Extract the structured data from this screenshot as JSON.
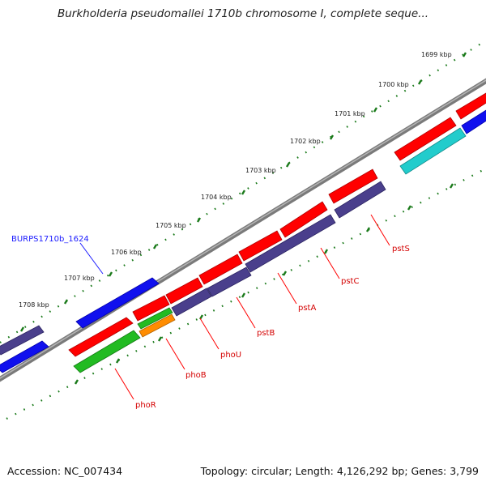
{
  "title": "Burkholderia pseudomallei 1710b chromosome I, complete seque...",
  "accession": "Accession: NC_007434",
  "topology": "Topology: circular; Length: 4,126,292 bp; Genes: 3,799",
  "kbp_labels": [
    "1699 kbp",
    "1700 kbp",
    "1701 kbp",
    "1702 kbp",
    "1703 kbp",
    "1704 kbp",
    "1705 kbp",
    "1706 kbp",
    "1707 kbp",
    "1708 kbp"
  ],
  "gene_labels": {
    "phoR": "phoR",
    "phoB": "phoB",
    "phoU": "phoU",
    "pstB": "pstB",
    "pstA": "pstA",
    "pstC": "pstC",
    "pstS": "pstS"
  },
  "locus_label": "BURPS1710b_1624",
  "colors": {
    "backbone": "#8a8a8a",
    "ticks": "#1a7a1a",
    "gene_red": "#ff0000",
    "gene_purple": "#4a3f8c",
    "gene_blue": "#1010ee",
    "gene_green": "#22bb22",
    "gene_orange": "#ff8c00",
    "gene_cyan": "#22cccc",
    "label_red": "#d40000",
    "label_blue": "#1a1aff"
  }
}
